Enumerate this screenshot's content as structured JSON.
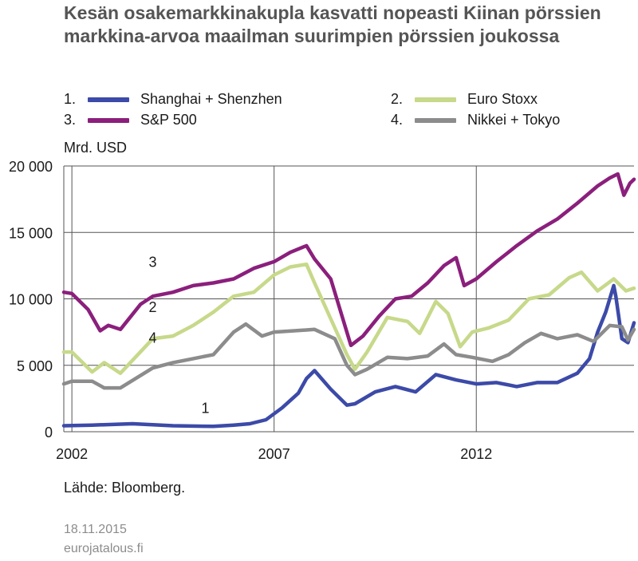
{
  "title": "Kesän osakemarkkinakupla kasvatti nopeasti Kiinan pörssien markkina-arvoa maailman suurimpien pörssien joukossa",
  "legend": [
    {
      "num": "1.",
      "label": "Shanghai + Shenzhen",
      "color": "#3c4aa8"
    },
    {
      "num": "2.",
      "label": "Euro Stoxx",
      "color": "#c7d98a"
    },
    {
      "num": "3.",
      "label": "S&P 500",
      "color": "#8b1f7c"
    },
    {
      "num": "4.",
      "label": "Nikkei + Tokyo",
      "color": "#8c8c8c"
    }
  ],
  "unit_label": "Mrd. USD",
  "source": "Lähde: Bloomberg.",
  "date": "18.11.2015",
  "site": "eurojatalous.fi",
  "chart_data": {
    "type": "line",
    "ylabel": "Mrd. USD",
    "ylim": [
      0,
      20000
    ],
    "xlim": [
      2001.8,
      2015.9
    ],
    "grid": true,
    "legend_position": "top",
    "y_ticks": [
      {
        "value": 0,
        "label": "0"
      },
      {
        "value": 5000,
        "label": "5 000"
      },
      {
        "value": 10000,
        "label": "10 000"
      },
      {
        "value": 15000,
        "label": "15 000"
      },
      {
        "value": 20000,
        "label": "20 000"
      }
    ],
    "x_ticks": [
      {
        "value": 2002,
        "label": "2002"
      },
      {
        "value": 2007,
        "label": "2007"
      },
      {
        "value": 2012,
        "label": "2012"
      }
    ],
    "series": [
      {
        "name": "Shanghai + Shenzhen",
        "num_label": "1",
        "label_at": [
          2005.3,
          1400
        ],
        "color": "#3c4aa8",
        "x": [
          2001.8,
          2002.5,
          2003.5,
          2004.5,
          2005.5,
          2006.0,
          2006.4,
          2006.8,
          2007.2,
          2007.6,
          2007.8,
          2008.0,
          2008.4,
          2008.8,
          2009.0,
          2009.5,
          2010.0,
          2010.5,
          2011.0,
          2011.5,
          2012.0,
          2012.5,
          2013.0,
          2013.5,
          2014.0,
          2014.5,
          2014.8,
          2015.0,
          2015.2,
          2015.4,
          2015.45,
          2015.6,
          2015.75,
          2015.9
        ],
        "values": [
          450,
          500,
          600,
          450,
          400,
          500,
          600,
          900,
          1800,
          2900,
          4000,
          4600,
          3200,
          2000,
          2100,
          3000,
          3400,
          3000,
          4300,
          3900,
          3600,
          3700,
          3400,
          3700,
          3700,
          4400,
          5500,
          7500,
          9000,
          11000,
          10200,
          7000,
          6700,
          8200
        ]
      },
      {
        "name": "Euro Stoxx",
        "num_label": "2",
        "label_at": [
          2004.0,
          9000
        ],
        "color": "#c7d98a",
        "x": [
          2001.8,
          2002.0,
          2002.5,
          2002.8,
          2003.2,
          2004.0,
          2004.5,
          2005.0,
          2005.5,
          2006.0,
          2006.5,
          2007.0,
          2007.4,
          2007.8,
          2008.0,
          2008.4,
          2008.8,
          2009.0,
          2009.3,
          2009.8,
          2010.3,
          2010.6,
          2011.0,
          2011.3,
          2011.6,
          2011.9,
          2012.3,
          2012.8,
          2013.3,
          2013.8,
          2014.3,
          2014.6,
          2015.0,
          2015.4,
          2015.7,
          2015.9
        ],
        "values": [
          6000,
          6000,
          4500,
          5200,
          4400,
          7000,
          7200,
          8000,
          9000,
          10200,
          10500,
          11800,
          12400,
          12600,
          11200,
          8500,
          5800,
          4700,
          6000,
          8600,
          8300,
          7400,
          9800,
          8900,
          6400,
          7500,
          7800,
          8400,
          10000,
          10300,
          11600,
          12000,
          10600,
          11500,
          10600,
          10800
        ]
      },
      {
        "name": "S&P 500",
        "num_label": "3",
        "label_at": [
          2004.0,
          12400
        ],
        "color": "#8b1f7c",
        "x": [
          2001.8,
          2002.0,
          2002.4,
          2002.7,
          2002.9,
          2003.2,
          2003.7,
          2004.0,
          2004.5,
          2005.0,
          2005.5,
          2006.0,
          2006.5,
          2007.0,
          2007.4,
          2007.8,
          2008.0,
          2008.4,
          2008.7,
          2008.9,
          2009.2,
          2009.6,
          2010.0,
          2010.4,
          2010.8,
          2011.2,
          2011.5,
          2011.7,
          2012.0,
          2012.5,
          2013.0,
          2013.5,
          2014.0,
          2014.5,
          2015.0,
          2015.3,
          2015.5,
          2015.65,
          2015.8,
          2015.9
        ],
        "values": [
          10500,
          10400,
          9200,
          7600,
          8000,
          7700,
          9600,
          10200,
          10500,
          11000,
          11200,
          11500,
          12300,
          12800,
          13500,
          14000,
          13000,
          11500,
          8500,
          6500,
          7200,
          8700,
          10000,
          10200,
          11200,
          12500,
          13100,
          11000,
          11500,
          12800,
          14000,
          15100,
          16000,
          17200,
          18500,
          19100,
          19400,
          17800,
          18700,
          19000
        ]
      },
      {
        "name": "Nikkei + Tokyo",
        "num_label": "4",
        "label_at": [
          2004.0,
          6700
        ],
        "color": "#8c8c8c",
        "x": [
          2001.8,
          2002.0,
          2002.5,
          2002.8,
          2003.2,
          2004.0,
          2004.5,
          2005.0,
          2005.5,
          2006.0,
          2006.3,
          2006.7,
          2007.0,
          2007.5,
          2008.0,
          2008.5,
          2008.8,
          2009.0,
          2009.3,
          2009.8,
          2010.3,
          2010.8,
          2011.2,
          2011.5,
          2011.9,
          2012.4,
          2012.8,
          2013.2,
          2013.6,
          2014.0,
          2014.5,
          2014.9,
          2015.3,
          2015.6,
          2015.75,
          2015.9
        ],
        "values": [
          3600,
          3800,
          3800,
          3300,
          3300,
          4800,
          5200,
          5500,
          5800,
          7500,
          8100,
          7200,
          7500,
          7600,
          7700,
          7000,
          5000,
          4300,
          4700,
          5600,
          5500,
          5700,
          6600,
          5800,
          5600,
          5300,
          5800,
          6700,
          7400,
          7000,
          7300,
          6800,
          8000,
          7900,
          6900,
          7700
        ]
      }
    ]
  }
}
